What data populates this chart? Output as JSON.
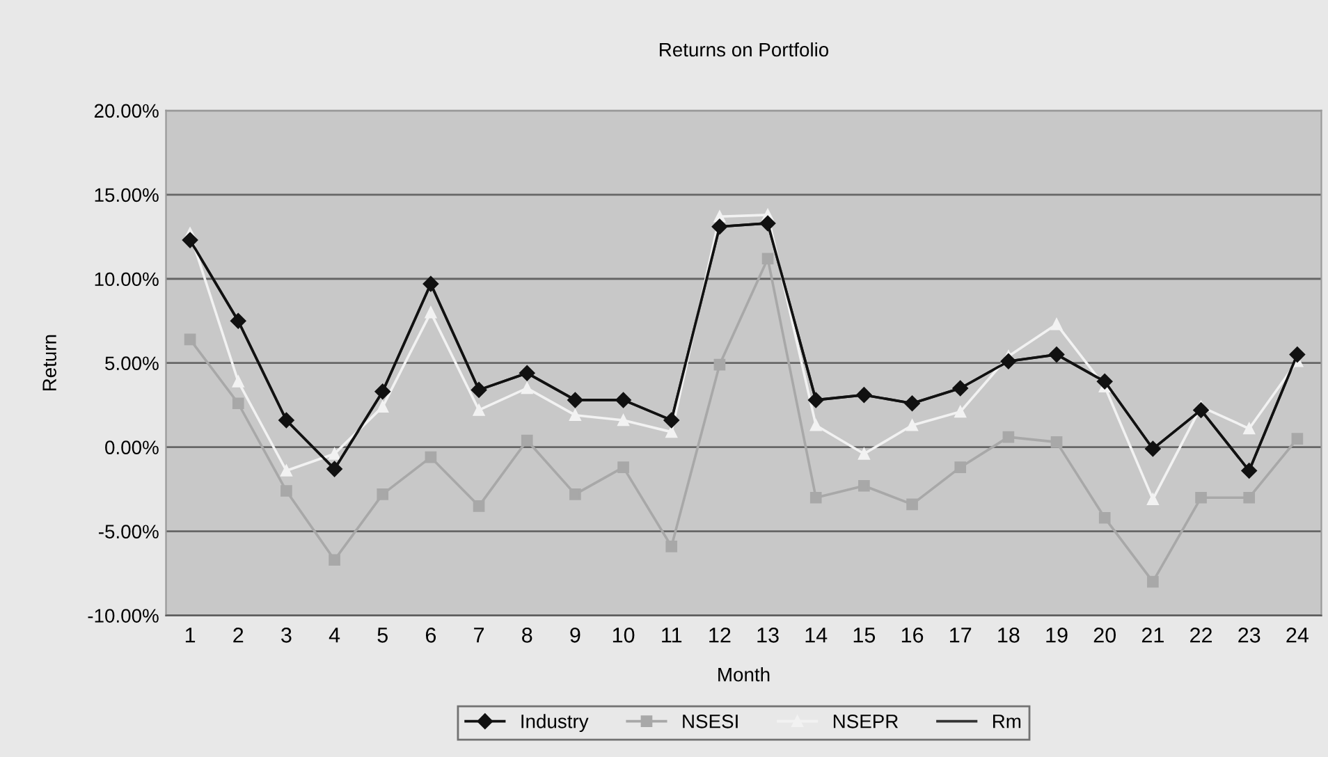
{
  "chart_data": {
    "type": "line",
    "title": "Returns on Portfolio",
    "xlabel": "Month",
    "ylabel": "Return",
    "categories": [
      "1",
      "2",
      "3",
      "4",
      "5",
      "6",
      "7",
      "8",
      "9",
      "10",
      "11",
      "12",
      "13",
      "14",
      "15",
      "16",
      "17",
      "18",
      "19",
      "20",
      "21",
      "22",
      "23",
      "24"
    ],
    "ylim": [
      -10,
      20
    ],
    "yticks": [
      {
        "value": -10,
        "label": "-10.00%"
      },
      {
        "value": -5,
        "label": "-5.00%"
      },
      {
        "value": 0,
        "label": "0.00%"
      },
      {
        "value": 5,
        "label": "5.00%"
      },
      {
        "value": 10,
        "label": "10.00%"
      },
      {
        "value": 15,
        "label": "15.00%"
      },
      {
        "value": 20,
        "label": "20.00%"
      }
    ],
    "grid": "y",
    "legend": "bottom",
    "series": [
      {
        "name": "Rm",
        "color": "#333333",
        "marker": "none",
        "values": [
          12.3,
          7.5,
          1.6,
          -1.3,
          3.3,
          9.7,
          3.4,
          4.4,
          2.8,
          2.8,
          1.6,
          13.1,
          13.3,
          2.8,
          3.1,
          2.6,
          3.5,
          5.1,
          5.5,
          3.9,
          -0.1,
          2.2,
          -1.4,
          5.5
        ]
      },
      {
        "name": "NSEPR",
        "color": "#f2f2f2",
        "marker": "triangle",
        "values": [
          12.7,
          3.9,
          -1.4,
          -0.4,
          2.4,
          8.0,
          2.2,
          3.5,
          1.9,
          1.6,
          0.9,
          13.7,
          13.8,
          1.3,
          -0.4,
          1.3,
          2.1,
          5.4,
          7.3,
          3.6,
          -3.1,
          2.4,
          1.1,
          5.1
        ]
      },
      {
        "name": "NSESI",
        "color": "#a8a8a8",
        "marker": "square",
        "values": [
          6.4,
          2.6,
          -2.6,
          -6.7,
          -2.8,
          -0.6,
          -3.5,
          0.4,
          -2.8,
          -1.2,
          -5.9,
          4.9,
          11.2,
          -3.0,
          -2.3,
          -3.4,
          -1.2,
          0.6,
          0.3,
          -4.2,
          -8.0,
          -3.0,
          -3.0,
          0.5
        ]
      },
      {
        "name": "Industry",
        "color": "#111111",
        "marker": "diamond",
        "values": [
          12.3,
          7.5,
          1.6,
          -1.3,
          3.3,
          9.7,
          3.4,
          4.4,
          2.8,
          2.8,
          1.6,
          13.1,
          13.3,
          2.8,
          3.1,
          2.6,
          3.5,
          5.1,
          5.5,
          3.9,
          -0.1,
          2.2,
          -1.4,
          5.5
        ]
      }
    ]
  }
}
